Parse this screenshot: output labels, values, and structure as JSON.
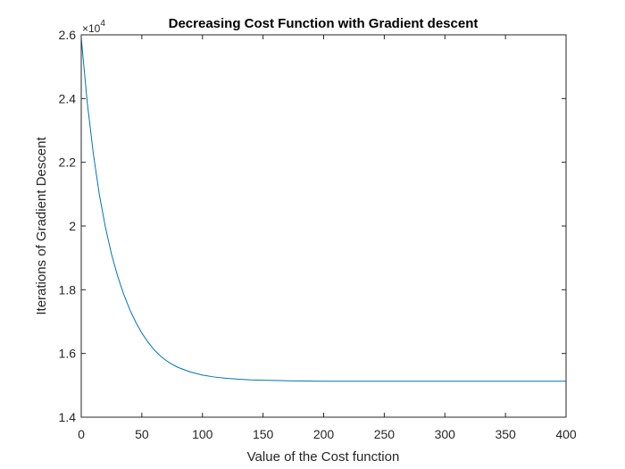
{
  "chart_data": {
    "type": "line",
    "title": "Decreasing Cost Function with Gradient descent",
    "xlabel": "Value of the Cost function",
    "ylabel": "Iterations of Gradient Descent",
    "y_exponent_prefix": "×10",
    "y_exponent_power": "4",
    "xlim": [
      0,
      400
    ],
    "ylim": [
      14000,
      26000
    ],
    "x_ticks": [
      0,
      50,
      100,
      150,
      200,
      250,
      300,
      350,
      400
    ],
    "x_tick_labels": [
      "0",
      "50",
      "100",
      "150",
      "200",
      "250",
      "300",
      "350",
      "400"
    ],
    "y_ticks": [
      14000,
      16000,
      18000,
      20000,
      22000,
      24000,
      26000
    ],
    "y_tick_labels": [
      "1.4",
      "1.6",
      "1.8",
      "2",
      "2.2",
      "2.4",
      "2.6"
    ],
    "grid": false,
    "box": true,
    "line_color": "#0072BD",
    "series": [
      {
        "x": [
          0,
          5,
          10,
          15,
          20,
          25,
          30,
          35,
          40,
          45,
          50,
          55,
          60,
          65,
          70,
          75,
          80,
          90,
          100,
          110,
          120,
          130,
          140,
          150,
          175,
          200,
          250,
          300,
          350,
          400
        ],
        "values": [
          25900,
          23860,
          22260,
          20970,
          19950,
          19110,
          18430,
          17860,
          17380,
          16980,
          16640,
          16360,
          16120,
          15930,
          15780,
          15660,
          15560,
          15420,
          15320,
          15260,
          15220,
          15190,
          15170,
          15160,
          15140,
          15130,
          15130,
          15130,
          15130,
          15130
        ]
      }
    ]
  }
}
